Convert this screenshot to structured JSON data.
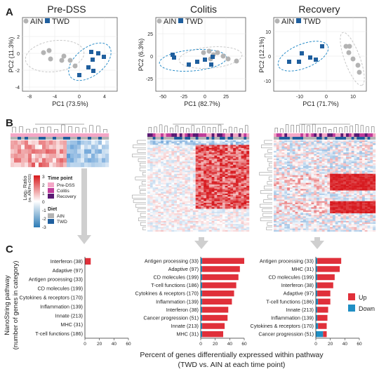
{
  "panels": {
    "A": "A",
    "B": "B",
    "C": "C"
  },
  "colors": {
    "ain": "#b3b3b3",
    "twd": "#1f5f9e",
    "ellipse_twd": "#2c8ec9",
    "ellipse_ain": "#c8c8c8",
    "up": "#e0303a",
    "down": "#1f8fc4",
    "pre_dss": "#f4a6c6",
    "colitis": "#c03c9a",
    "recovery": "#5a1a73"
  },
  "pca": [
    {
      "title": "Pre-DSS",
      "ylabel": "PC2 (11.3%)",
      "xlabel": "PC1 (73.5%)",
      "xticks": [
        "-8",
        "-4",
        "0",
        "4"
      ],
      "yticks": [
        "2",
        "0",
        "-2",
        "-4"
      ],
      "legend": [
        "AIN",
        "TWD"
      ]
    },
    {
      "title": "Colitis",
      "ylabel": "PC2 (6.3%)",
      "xlabel": "PC1 (82.7%)",
      "xticks": [
        "-50",
        "-25",
        "0",
        "25"
      ],
      "yticks": [
        "25",
        "0",
        "-25"
      ],
      "legend": [
        "AIN",
        "TWD"
      ]
    },
    {
      "title": "Recovery",
      "ylabel": "PC2 (12.1%)",
      "xlabel": "PC1 (71.7%)",
      "xticks": [
        "-10",
        "0",
        "10"
      ],
      "yticks": [
        "10",
        "0",
        "-10"
      ],
      "legend": [
        "AIN",
        "TWD"
      ]
    }
  ],
  "heat_legend": {
    "title": "Log₂ Ratio",
    "subtitle": "(vs. AIN/Pre-DSS)",
    "ticks": [
      "3",
      "2",
      "1",
      "0",
      "-1",
      "-2",
      "-3"
    ],
    "time_title": "Time point",
    "time_items": [
      "Pre-DSS",
      "Colitis",
      "Recovery"
    ],
    "diet_title": "Diet",
    "diet_items": [
      "AIN",
      "TWD"
    ]
  },
  "chart_data": [
    {
      "type": "bar",
      "stacked": true,
      "xlim": [
        0,
        60
      ],
      "xticks": [
        "0",
        "20",
        "40",
        "60"
      ],
      "categories": [
        "Interferon (38)",
        "Adaptive (97)",
        "Antigen processing (33)",
        "CD molecules (199)",
        "Cytokines & receptors (170)",
        "Inflammation (139)",
        "Innate (213)",
        "MHC (31)",
        "T-cell functions (186)"
      ],
      "series": [
        {
          "name": "Up",
          "values": [
            8,
            0,
            0,
            0,
            0,
            0,
            0,
            0,
            0
          ]
        },
        {
          "name": "Down",
          "values": [
            0,
            0,
            0,
            0,
            0,
            0,
            0,
            0,
            0
          ]
        }
      ]
    },
    {
      "type": "bar",
      "stacked": true,
      "xlim": [
        0,
        60
      ],
      "xticks": [
        "0",
        "20",
        "40",
        "60"
      ],
      "categories": [
        "Antigen processing (33)",
        "Adaptive (97)",
        "CD molecules (199)",
        "T-cell functions (186)",
        "Cytokines & receptors (170)",
        "Inflammation (139)",
        "Interferon (38)",
        "Cancer progression (51)",
        "Innate (213)",
        "MHC (31)"
      ],
      "series": [
        {
          "name": "Up",
          "values": [
            58,
            52,
            50,
            47,
            44,
            41,
            36,
            35,
            31,
            29
          ]
        },
        {
          "name": "Down",
          "values": [
            2,
            2,
            2,
            2,
            2,
            2,
            2,
            2,
            2,
            2
          ]
        }
      ]
    },
    {
      "type": "bar",
      "stacked": true,
      "xlim": [
        0,
        60
      ],
      "xticks": [
        "0",
        "20",
        "40",
        "60"
      ],
      "categories": [
        "Antigen processing (33)",
        "MHC (31)",
        "CD molecules (199)",
        "Interferon (38)",
        "Adaptive (97)",
        "T-cell functions (186)",
        "Innate (213)",
        "Inflammation (139)",
        "Cytokines & receptors (170)",
        "Cancer progression (51)"
      ],
      "series": [
        {
          "name": "Up",
          "values": [
            33,
            31,
            24,
            22,
            18,
            17,
            15,
            14,
            12,
            5
          ]
        },
        {
          "name": "Down",
          "values": [
            2,
            2,
            2,
            2,
            2,
            3,
            2,
            2,
            3,
            10
          ]
        }
      ]
    }
  ],
  "bar_legend": [
    "Up",
    "Down"
  ],
  "y_axis_label_1": "NanoString pathway",
  "y_axis_label_2": "(number of genes in category)",
  "x_axis_label_1": "Percent of genes differentially expressed within pathway",
  "x_axis_label_2": "(TWD vs. AIN at each time point)"
}
